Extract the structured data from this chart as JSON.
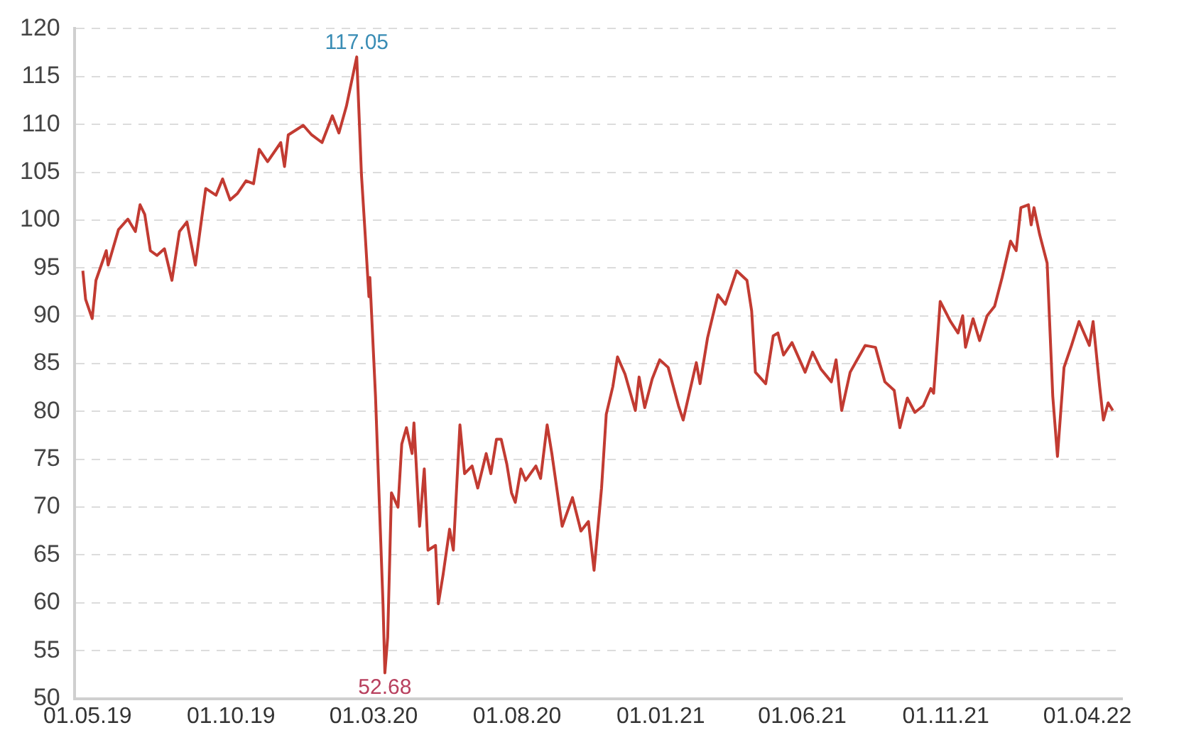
{
  "chart_data": {
    "type": "line",
    "x": [
      "2019-04-26",
      "2019-04-29",
      "2019-05-06",
      "2019-05-10",
      "2019-05-21",
      "2019-05-23",
      "2019-06-03",
      "2019-06-13",
      "2019-06-21",
      "2019-06-26",
      "2019-07-01",
      "2019-07-07",
      "2019-07-14",
      "2019-07-22",
      "2019-07-30",
      "2019-08-07",
      "2019-08-15",
      "2019-08-24",
      "2019-09-04",
      "2019-09-15",
      "2019-09-22",
      "2019-09-30",
      "2019-10-08",
      "2019-10-17",
      "2019-10-25",
      "2019-10-31",
      "2019-11-09",
      "2019-11-23",
      "2019-11-27",
      "2019-12-01",
      "2019-12-17",
      "2019-12-26",
      "2020-01-06",
      "2020-01-17",
      "2020-01-24",
      "2020-02-01",
      "2020-02-12",
      "2020-02-17",
      "2020-02-21",
      "2020-02-25",
      "2020-02-26",
      "2020-03-03",
      "2020-03-11",
      "2020-03-13",
      "2020-03-16",
      "2020-03-20",
      "2020-03-27",
      "2020-03-31",
      "2020-04-05",
      "2020-04-11",
      "2020-04-13",
      "2020-04-19",
      "2020-04-24",
      "2020-04-28",
      "2020-05-06",
      "2020-05-09",
      "2020-05-14",
      "2020-05-21",
      "2020-05-25",
      "2020-06-01",
      "2020-06-06",
      "2020-06-14",
      "2020-06-20",
      "2020-06-29",
      "2020-07-04",
      "2020-07-10",
      "2020-07-15",
      "2020-07-21",
      "2020-07-26",
      "2020-07-30",
      "2020-08-05",
      "2020-08-10",
      "2020-08-21",
      "2020-08-26",
      "2020-09-02",
      "2020-09-07",
      "2020-09-18",
      "2020-09-29",
      "2020-10-08",
      "2020-10-16",
      "2020-10-22",
      "2020-10-30",
      "2020-11-04",
      "2020-11-11",
      "2020-11-16",
      "2020-11-24",
      "2020-12-05",
      "2020-12-09",
      "2020-12-15",
      "2020-12-23",
      "2020-12-31",
      "2021-01-09",
      "2021-01-20",
      "2021-01-25",
      "2021-02-08",
      "2021-02-12",
      "2021-02-20",
      "2021-03-03",
      "2021-03-11",
      "2021-03-23",
      "2021-04-03",
      "2021-04-08",
      "2021-04-12",
      "2021-04-23",
      "2021-05-01",
      "2021-05-06",
      "2021-05-12",
      "2021-05-21",
      "2021-06-04",
      "2021-06-12",
      "2021-06-21",
      "2021-07-02",
      "2021-07-07",
      "2021-07-13",
      "2021-07-22",
      "2021-08-07",
      "2021-08-18",
      "2021-08-28",
      "2021-09-07",
      "2021-09-13",
      "2021-09-21",
      "2021-09-29",
      "2021-10-08",
      "2021-10-16",
      "2021-10-19",
      "2021-10-26",
      "2021-11-06",
      "2021-11-14",
      "2021-11-19",
      "2021-11-22",
      "2021-11-30",
      "2021-12-07",
      "2021-12-15",
      "2021-12-23",
      "2021-12-31",
      "2022-01-09",
      "2022-01-15",
      "2022-01-20",
      "2022-01-28",
      "2022-01-31",
      "2022-02-03",
      "2022-02-09",
      "2022-02-17",
      "2022-02-23",
      "2022-02-28",
      "2022-03-07",
      "2022-03-15",
      "2022-03-23",
      "2022-04-03",
      "2022-04-07",
      "2022-04-14",
      "2022-04-18",
      "2022-04-23",
      "2022-04-28"
    ],
    "series": [
      {
        "color": "#c23b32",
        "values": [
          94.7,
          91.7,
          89.7,
          93.7,
          96.8,
          95.3,
          99.0,
          100.1,
          98.8,
          101.6,
          100.6,
          96.8,
          96.3,
          97.0,
          93.7,
          98.8,
          99.8,
          95.3,
          103.3,
          102.6,
          104.3,
          102.1,
          102.8,
          104.1,
          103.8,
          107.4,
          106.1,
          108.1,
          105.6,
          108.9,
          109.9,
          108.9,
          108.1,
          110.9,
          109.1,
          111.9,
          117.05,
          104.8,
          98.5,
          92.0,
          94.0,
          81.6,
          59.9,
          52.68,
          56.4,
          71.5,
          70.0,
          76.6,
          78.3,
          75.6,
          78.8,
          68.0,
          74.0,
          65.5,
          66.0,
          59.9,
          62.9,
          67.7,
          65.5,
          78.6,
          73.5,
          74.3,
          72.0,
          75.6,
          73.5,
          77.1,
          77.1,
          74.5,
          71.5,
          70.5,
          74.0,
          72.8,
          74.3,
          73.0,
          78.6,
          75.6,
          68.0,
          71.0,
          67.5,
          68.5,
          63.4,
          72.0,
          79.7,
          82.6,
          85.7,
          83.9,
          80.1,
          83.6,
          80.4,
          83.4,
          85.4,
          84.6,
          80.6,
          79.1,
          85.1,
          82.9,
          87.7,
          92.2,
          91.2,
          94.7,
          93.7,
          90.5,
          84.1,
          82.9,
          87.9,
          88.2,
          85.9,
          87.2,
          84.1,
          86.2,
          84.4,
          83.1,
          85.4,
          80.1,
          84.1,
          86.9,
          86.7,
          83.1,
          82.2,
          78.3,
          81.4,
          79.9,
          80.6,
          82.4,
          81.9,
          91.5,
          89.4,
          88.2,
          90.0,
          86.7,
          89.7,
          87.4,
          90.0,
          91.0,
          94.0,
          97.8,
          96.8,
          101.3,
          101.6,
          99.5,
          101.3,
          98.5,
          95.5,
          81.6,
          75.3,
          84.6,
          86.9,
          89.4,
          86.9,
          89.4,
          82.6,
          79.1,
          80.9,
          80.1
        ]
      }
    ],
    "xlim": [
      "2019-04-17",
      "2022-05-08"
    ],
    "xticks": [
      {
        "value": "2019-05-01",
        "label": "01.05.19"
      },
      {
        "value": "2019-10-01",
        "label": "01.10.19"
      },
      {
        "value": "2020-03-01",
        "label": "01.03.20"
      },
      {
        "value": "2020-08-01",
        "label": "01.08.20"
      },
      {
        "value": "2021-01-01",
        "label": "01.01.21"
      },
      {
        "value": "2021-06-01",
        "label": "01.06.21"
      },
      {
        "value": "2021-11-01",
        "label": "01.11.21"
      },
      {
        "value": "2022-04-01",
        "label": "01.04.22"
      }
    ],
    "ylim": [
      50,
      120
    ],
    "yticks": [
      50,
      55,
      60,
      65,
      70,
      75,
      80,
      85,
      90,
      95,
      100,
      105,
      110,
      115,
      120
    ],
    "grid": "y",
    "legend": false,
    "marker": "none",
    "line_style": "solid",
    "annotations": [
      {
        "text": "117.05",
        "x": "2020-02-12",
        "y": 117.05
      },
      {
        "text": "52.68",
        "x": "2020-03-13",
        "y": 52.68
      }
    ]
  }
}
